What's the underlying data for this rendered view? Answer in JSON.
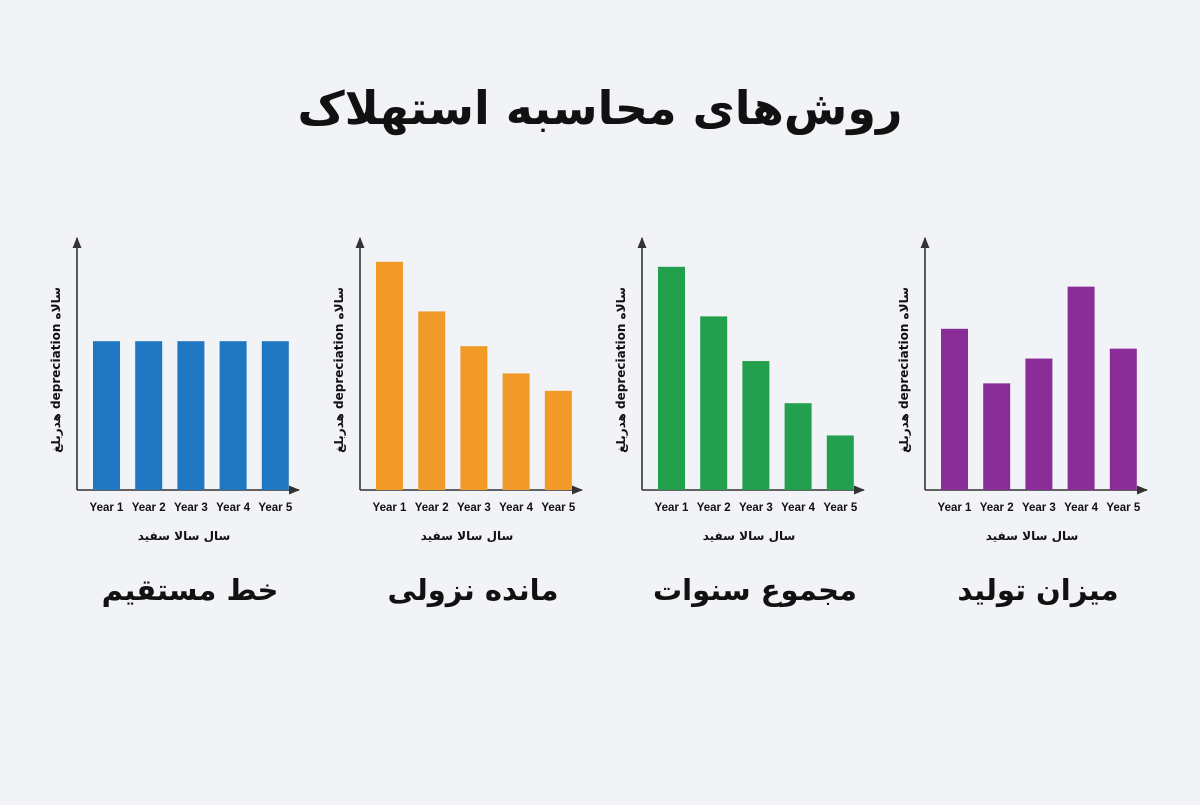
{
  "title": "روش‌های محاسبه استهلاک",
  "chart_data": [
    {
      "type": "bar",
      "title": "خط مستقیم",
      "xlabel": "سال سالا سفید",
      "ylabel": "هدربلغ depreciation سالاه",
      "categories": [
        "Year 1",
        "Year 2",
        "Year 3",
        "Year 4",
        "Year 5"
      ],
      "values": [
        60,
        60,
        60,
        60,
        60
      ],
      "ylim": [
        0,
        100
      ],
      "color": "#1f77c2"
    },
    {
      "type": "bar",
      "title": "مانده نزولی",
      "xlabel": "سال سالا سفید",
      "ylabel": "هدربلغ depreciation سالاه",
      "categories": [
        "Year 1",
        "Year 2",
        "Year 3",
        "Year 4",
        "Year 5"
      ],
      "values": [
        92,
        72,
        58,
        47,
        40
      ],
      "ylim": [
        0,
        100
      ],
      "color": "#f29a28"
    },
    {
      "type": "bar",
      "title": "مجموع سنوات",
      "xlabel": "سال سالا سفید",
      "ylabel": "هدربلغ depreciation سالاه",
      "categories": [
        "Year 1",
        "Year 2",
        "Year 3",
        "Year 4",
        "Year 5"
      ],
      "values": [
        90,
        70,
        52,
        35,
        22
      ],
      "ylim": [
        0,
        100
      ],
      "color": "#22a04e"
    },
    {
      "type": "bar",
      "title": "میزان تولید",
      "xlabel": "سال سالا سفید",
      "ylabel": "هدربلغ depreciation سالاه",
      "categories": [
        "Year 1",
        "Year 2",
        "Year 3",
        "Year 4",
        "Year 5"
      ],
      "values": [
        65,
        43,
        53,
        82,
        57
      ],
      "ylim": [
        0,
        100
      ],
      "color": "#8a2d98"
    }
  ]
}
